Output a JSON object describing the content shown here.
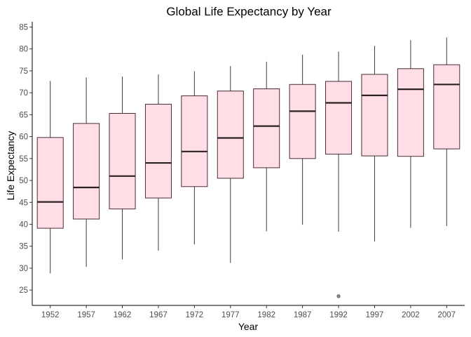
{
  "chart_data": {
    "type": "boxplot",
    "title": "Global Life Expectancy by Year",
    "xlabel": "Year",
    "ylabel": "Life Expectancy",
    "ylim": [
      21.5,
      86.2
    ],
    "yticks": [
      25,
      30,
      35,
      40,
      45,
      50,
      55,
      60,
      65,
      70,
      75,
      80,
      85
    ],
    "grid": false,
    "categories": [
      "1952",
      "1957",
      "1962",
      "1967",
      "1972",
      "1977",
      "1982",
      "1987",
      "1992",
      "1997",
      "2002",
      "2007"
    ],
    "boxes": [
      {
        "min": 28.8,
        "q1": 39.1,
        "median": 45.1,
        "q3": 59.8,
        "max": 72.7,
        "outliers": []
      },
      {
        "min": 30.3,
        "q1": 41.2,
        "median": 48.4,
        "q3": 63.0,
        "max": 73.5,
        "outliers": []
      },
      {
        "min": 32.0,
        "q1": 43.5,
        "median": 51.0,
        "q3": 65.3,
        "max": 73.7,
        "outliers": []
      },
      {
        "min": 34.0,
        "q1": 46.0,
        "median": 54.0,
        "q3": 67.4,
        "max": 74.2,
        "outliers": []
      },
      {
        "min": 35.4,
        "q1": 48.6,
        "median": 56.6,
        "q3": 69.3,
        "max": 74.9,
        "outliers": []
      },
      {
        "min": 31.2,
        "q1": 50.5,
        "median": 59.7,
        "q3": 70.4,
        "max": 76.1,
        "outliers": []
      },
      {
        "min": 38.4,
        "q1": 52.9,
        "median": 62.4,
        "q3": 70.9,
        "max": 77.1,
        "outliers": []
      },
      {
        "min": 39.9,
        "q1": 55.0,
        "median": 65.8,
        "q3": 71.9,
        "max": 78.7,
        "outliers": []
      },
      {
        "min": 38.3,
        "q1": 56.0,
        "median": 67.7,
        "q3": 72.6,
        "max": 79.4,
        "outliers": [
          23.6
        ]
      },
      {
        "min": 36.1,
        "q1": 55.6,
        "median": 69.4,
        "q3": 74.2,
        "max": 80.7,
        "outliers": []
      },
      {
        "min": 39.2,
        "q1": 55.5,
        "median": 70.8,
        "q3": 75.5,
        "max": 82.0,
        "outliers": []
      },
      {
        "min": 39.6,
        "q1": 57.2,
        "median": 71.9,
        "q3": 76.4,
        "max": 82.6,
        "outliers": []
      }
    ],
    "colors": {
      "box_fill": "#ffdfe5",
      "box_stroke": "#4a2b31",
      "median": "#2b2023",
      "whisker": "#3a3a3a",
      "outlier_fill": "#8c8c8c",
      "axis": "#000000",
      "tick_label": "#4d4d4d"
    }
  }
}
